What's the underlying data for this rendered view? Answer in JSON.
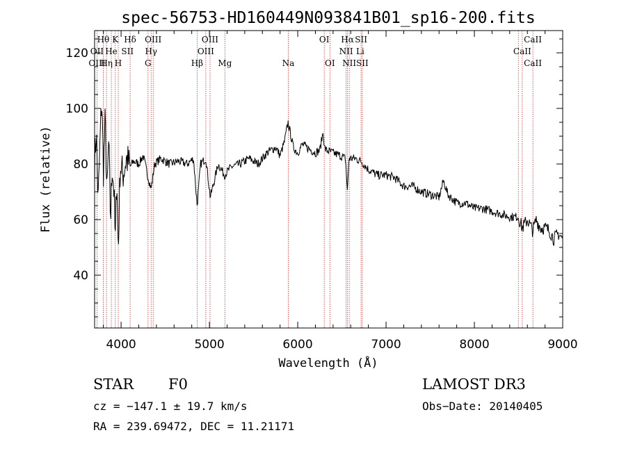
{
  "chart_data": {
    "type": "line",
    "title": "spec-56753-HD160449N093841B01_sp16-200.fits",
    "xlabel": "Wavelength (Å)",
    "ylabel": "Flux (relative)",
    "xlim": [
      3700,
      9000
    ],
    "ylim": [
      21,
      128
    ],
    "xticks": [
      4000,
      5000,
      6000,
      7000,
      8000,
      9000
    ],
    "yticks": [
      40,
      60,
      80,
      100,
      120
    ],
    "series": [
      {
        "name": "spectrum",
        "x": [
          3700,
          3720,
          3740,
          3760,
          3780,
          3800,
          3820,
          3840,
          3860,
          3880,
          3900,
          3920,
          3934,
          3950,
          3968,
          3990,
          4020,
          4060,
          4102,
          4140,
          4200,
          4250,
          4300,
          4340,
          4380,
          4450,
          4550,
          4650,
          4750,
          4820,
          4861,
          4900,
          4960,
          5010,
          5100,
          5170,
          5250,
          5350,
          5450,
          5550,
          5650,
          5750,
          5800,
          5850,
          5890,
          5910,
          5950,
          6000,
          6050,
          6100,
          6150,
          6200,
          6250,
          6290,
          6300,
          6320,
          6400,
          6480,
          6540,
          6563,
          6580,
          6650,
          6717,
          6800,
          6900,
          7000,
          7100,
          7200,
          7300,
          7400,
          7500,
          7600,
          7650,
          7700,
          7800,
          7900,
          8000,
          8100,
          8200,
          8300,
          8400,
          8498,
          8542,
          8600,
          8662,
          8700,
          8750,
          8800,
          8850,
          8900,
          8950,
          9000
        ],
        "values": [
          80,
          92,
          66,
          86,
          104,
          78,
          96,
          68,
          88,
          60,
          80,
          70,
          50,
          78,
          48,
          80,
          76,
          82,
          79,
          81,
          80,
          83,
          76,
          71,
          80,
          82,
          80,
          81,
          80,
          82,
          65,
          80,
          82,
          68,
          80,
          76,
          79,
          80,
          82,
          80,
          84,
          86,
          83,
          88,
          95,
          92,
          86,
          84,
          87,
          86,
          85,
          84,
          85,
          92,
          86,
          85,
          84,
          83,
          82,
          70,
          82,
          82,
          81,
          78,
          76,
          76,
          75,
          72,
          72,
          70,
          69,
          68,
          74,
          69,
          66,
          66,
          64,
          64,
          63,
          62,
          61,
          61,
          57,
          60,
          56,
          60,
          57,
          57,
          56,
          53,
          55,
          53
        ]
      }
    ],
    "line_markers": {
      "row1": [
        {
          "label": "Hθ",
          "x": 3798
        },
        {
          "label": "K",
          "x": 3934
        },
        {
          "label": "Hδ",
          "x": 4102
        },
        {
          "label": "OIII",
          "x": 4363
        },
        {
          "label": "OIII",
          "x": 5007
        },
        {
          "label": "OI",
          "x": 6300
        },
        {
          "label": "Hα",
          "x": 6563
        },
        {
          "label": "SII",
          "x": 6717
        },
        {
          "label": "CaII",
          "x": 8662
        }
      ],
      "row2": [
        {
          "label": "OII",
          "x": 3727
        },
        {
          "label": "He",
          "x": 3889
        },
        {
          "label": "SII",
          "x": 4072
        },
        {
          "label": "Hγ",
          "x": 4340
        },
        {
          "label": "OIII",
          "x": 4959
        },
        {
          "label": "NII",
          "x": 6548
        },
        {
          "label": "Li",
          "x": 6708
        },
        {
          "label": "CaII",
          "x": 8542
        }
      ],
      "row3": [
        {
          "label": "OIII",
          "x": 3727
        },
        {
          "label": "Hη",
          "x": 3835
        },
        {
          "label": "H",
          "x": 3968
        },
        {
          "label": "G",
          "x": 4305
        },
        {
          "label": "Hβ",
          "x": 4861
        },
        {
          "label": "Mg",
          "x": 5175
        },
        {
          "label": "Na",
          "x": 5893
        },
        {
          "label": "OI",
          "x": 6364
        },
        {
          "label": "NII",
          "x": 6583
        },
        {
          "label": "SII",
          "x": 6731
        },
        {
          "label": "CaII",
          "x": 8662
        }
      ],
      "vertical_lines": [
        3727,
        3798,
        3835,
        3889,
        3934,
        3968,
        4102,
        4305,
        4340,
        4363,
        4861,
        4959,
        5007,
        5175,
        5893,
        6300,
        6364,
        6548,
        6563,
        6583,
        6717,
        6731,
        8498,
        8542,
        8662
      ]
    }
  },
  "footer": {
    "class_label": "STAR",
    "subclass": "F0",
    "survey": "LAMOST DR3",
    "cz": "cz = −147.1 ± 19.7 km/s",
    "obs_date": "Obs−Date: 20140405",
    "coords": "RA = 239.69472, DEC =  11.21171"
  },
  "colors": {
    "spectrum": "#000000",
    "marker_line": "#cc3333",
    "axes": "#000000"
  }
}
